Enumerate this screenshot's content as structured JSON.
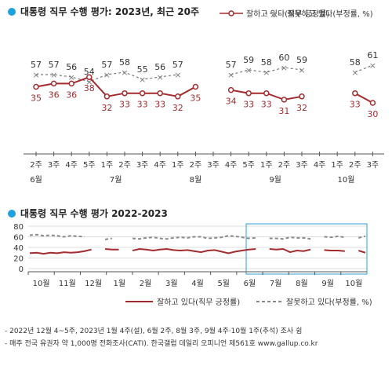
{
  "chart_data": [
    {
      "type": "line",
      "title": "대통령 직무 수행 평가: 2023년, 최근 20주",
      "x": [
        "2주",
        "3주",
        "4주",
        "5주",
        "1주",
        "2주",
        "3주",
        "4주",
        "1주",
        "2주",
        "3주",
        "4주",
        "5주",
        "1주",
        "2주",
        "3주",
        "4주",
        "1주",
        "2주",
        "3주"
      ],
      "months": [
        {
          "label": "6월",
          "at": 0
        },
        {
          "label": "7월",
          "at": 4.5
        },
        {
          "label": "8월",
          "at": 9
        },
        {
          "label": "9월",
          "at": 13.5
        },
        {
          "label": "10월",
          "at": 17.5
        }
      ],
      "ylim": [
        0,
        70
      ],
      "series": [
        {
          "name": "잘하고 있다(직무 긍정률)",
          "color": "#a32b2e",
          "marker": "circle",
          "values": [
            35,
            36,
            36,
            38,
            32,
            33,
            33,
            33,
            32,
            35,
            null,
            34,
            33,
            33,
            31,
            32,
            null,
            null,
            33,
            30
          ]
        },
        {
          "name": "잘못하고 있다(부정률, %)",
          "color": "#7a7a7a",
          "marker": "x",
          "dash": "3,3",
          "values": [
            57,
            57,
            56,
            54,
            57,
            58,
            55,
            56,
            57,
            null,
            null,
            57,
            59,
            58,
            60,
            59,
            null,
            null,
            58,
            61
          ]
        }
      ],
      "legend_position": "top-right"
    },
    {
      "type": "line",
      "title": "대통령 직무 수행 평가 2022-2023",
      "yticks": [
        0,
        20,
        40,
        60,
        80
      ],
      "ylim": [
        0,
        80
      ],
      "grid": true,
      "months": [
        "10월",
        "11월",
        "12월",
        "1월",
        "2월",
        "3월",
        "4월",
        "5월",
        "6월",
        "7월",
        "8월",
        "9월",
        "10월"
      ],
      "highlight_window": "7월–10월 (최근 20주)",
      "series": [
        {
          "name": "잘하고 있다(직무 긍정률)",
          "color": "#a32b2e",
          "values": [
            29,
            30,
            28,
            30,
            29,
            31,
            30,
            31,
            33,
            36,
            null,
            37,
            36,
            36,
            null,
            34,
            37,
            36,
            34,
            36,
            37,
            35,
            34,
            35,
            33,
            31,
            34,
            35,
            32,
            29,
            32,
            34,
            36,
            37,
            null,
            37,
            36,
            37,
            31,
            34,
            33,
            36,
            null,
            35,
            34,
            34,
            33,
            null,
            34,
            30
          ]
        },
        {
          "name": "잘못하고 있다(부정률, %)",
          "color": "#8a8a8a",
          "dash": "4,3",
          "values": [
            63,
            64,
            62,
            63,
            62,
            60,
            62,
            61,
            60,
            null,
            null,
            55,
            57,
            null,
            null,
            57,
            56,
            58,
            59,
            57,
            56,
            58,
            59,
            58,
            60,
            60,
            57,
            58,
            59,
            62,
            61,
            59,
            57,
            58,
            null,
            57,
            57,
            56,
            59,
            58,
            58,
            56,
            null,
            60,
            59,
            61,
            59,
            null,
            58,
            61
          ]
        }
      ],
      "legend_position": "bottom-right"
    }
  ],
  "footnotes": [
    "- 2022년 12월 4~5주, 2023년 1월 4주(설), 6월 2주, 8월 3주, 9월 4주·10월 1주(추석) 조사 쉼",
    "- 매주 전국 유권자 약 1,000명 전화조사(CATI). 한국갤럽 데일리 오피니언 제561호 www.gallup.co.kr"
  ],
  "colors": {
    "accent": "#1fa1e0",
    "positive": "#a32b2e",
    "negative": "#7a7a7a",
    "highlight": "#2d9fd6"
  }
}
